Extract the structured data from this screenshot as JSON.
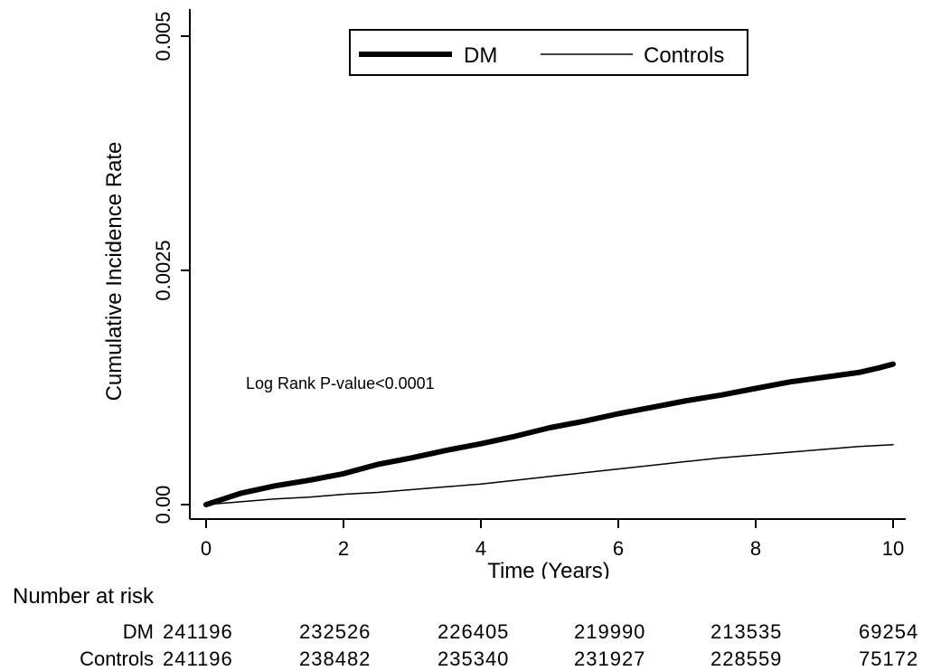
{
  "chart_data": {
    "type": "line",
    "xlabel": "Time (Years)",
    "ylabel": "Cumulative Incidence Rate",
    "xlim": [
      0,
      10
    ],
    "ylim": [
      0,
      0.005
    ],
    "x_ticks": [
      "0",
      "2",
      "4",
      "6",
      "8",
      "10"
    ],
    "y_ticks": [
      "0.00",
      "0.0025",
      "0.005"
    ],
    "legend_position": "top-center",
    "annotation": "Log Rank P-value<0.0001",
    "series": [
      {
        "name": "DM",
        "color": "#000000",
        "x": [
          0,
          0.25,
          0.5,
          1,
          1.5,
          2,
          2.5,
          3,
          3.5,
          4,
          4.5,
          5,
          5.5,
          6,
          6.5,
          7,
          7.5,
          8,
          8.5,
          9,
          9.5,
          9.8,
          10
        ],
        "y": [
          0,
          6e-05,
          0.00012,
          0.0002,
          0.00026,
          0.00033,
          0.00043,
          0.0005,
          0.00058,
          0.00065,
          0.00073,
          0.00082,
          0.00089,
          0.00097,
          0.00104,
          0.00111,
          0.00117,
          0.00124,
          0.00131,
          0.00136,
          0.00141,
          0.00146,
          0.0015
        ]
      },
      {
        "name": "Controls",
        "color": "#000000",
        "x": [
          0,
          0.5,
          1,
          1.5,
          2,
          2.5,
          3,
          3.5,
          4,
          4.5,
          5,
          5.5,
          6,
          6.5,
          7,
          7.5,
          8,
          8.5,
          9,
          9.5,
          10
        ],
        "y": [
          0,
          3e-05,
          6e-05,
          8e-05,
          0.00011,
          0.00013,
          0.00016,
          0.00019,
          0.00022,
          0.00026,
          0.0003,
          0.00034,
          0.00038,
          0.00042,
          0.00046,
          0.0005,
          0.00053,
          0.00056,
          0.00059,
          0.00062,
          0.00064
        ]
      }
    ]
  },
  "risk_table": {
    "title": "Number at risk",
    "rows": [
      {
        "label": "DM",
        "values": [
          "241196",
          "232526",
          "226405",
          "219990",
          "213535",
          "69254"
        ]
      },
      {
        "label": "Controls",
        "values": [
          "241196",
          "238482",
          "235340",
          "231927",
          "228559",
          "75172"
        ]
      }
    ]
  }
}
